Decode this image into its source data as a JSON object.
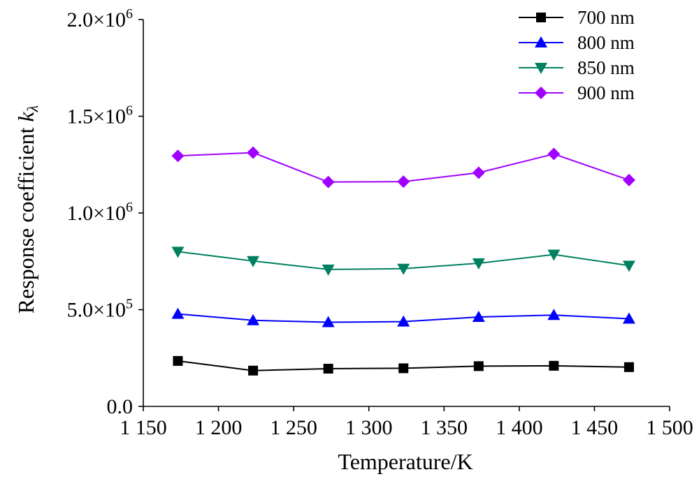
{
  "chart_data": {
    "type": "line",
    "xlabel": "Temperature/K",
    "ylabel": {
      "main": "Response coefficient ",
      "italic": "k",
      "sub": "λ"
    },
    "xlim": [
      1150,
      1500
    ],
    "ylim": [
      0,
      2000000
    ],
    "x_ticks": [
      {
        "value": 1150,
        "label": "1 150"
      },
      {
        "value": 1200,
        "label": "1 200"
      },
      {
        "value": 1250,
        "label": "1 250"
      },
      {
        "value": 1300,
        "label": "1 300"
      },
      {
        "value": 1350,
        "label": "1 350"
      },
      {
        "value": 1400,
        "label": "1 400"
      },
      {
        "value": 1450,
        "label": "1 450"
      },
      {
        "value": 1500,
        "label": "1 500"
      }
    ],
    "y_ticks": [
      {
        "value": 0,
        "mant": "0.0",
        "exp": ""
      },
      {
        "value": 500000,
        "mant": "5.0×10",
        "exp": "5"
      },
      {
        "value": 1000000,
        "mant": "1.0×10",
        "exp": "6"
      },
      {
        "value": 1500000,
        "mant": "1.5×10",
        "exp": "6"
      },
      {
        "value": 2000000,
        "mant": "2.0×10",
        "exp": "6"
      }
    ],
    "x": [
      1173,
      1223,
      1273,
      1323,
      1373,
      1423,
      1473
    ],
    "legend_position": "top-right",
    "grid": false,
    "series": [
      {
        "name": "700 nm",
        "marker": "square",
        "color": "#000000",
        "values": [
          235000,
          185000,
          195000,
          197000,
          208000,
          210000,
          203000
        ]
      },
      {
        "name": "800 nm",
        "marker": "triangle-up",
        "color": "#0000ff",
        "values": [
          478000,
          445000,
          435000,
          438000,
          462000,
          472000,
          453000
        ]
      },
      {
        "name": "850 nm",
        "marker": "triangle-down",
        "color": "#008060",
        "values": [
          800000,
          752000,
          708000,
          712000,
          740000,
          785000,
          728000
        ]
      },
      {
        "name": "900 nm",
        "marker": "diamond",
        "color": "#a000ff",
        "values": [
          1295000,
          1312000,
          1160000,
          1162000,
          1208000,
          1305000,
          1170000
        ]
      }
    ]
  }
}
